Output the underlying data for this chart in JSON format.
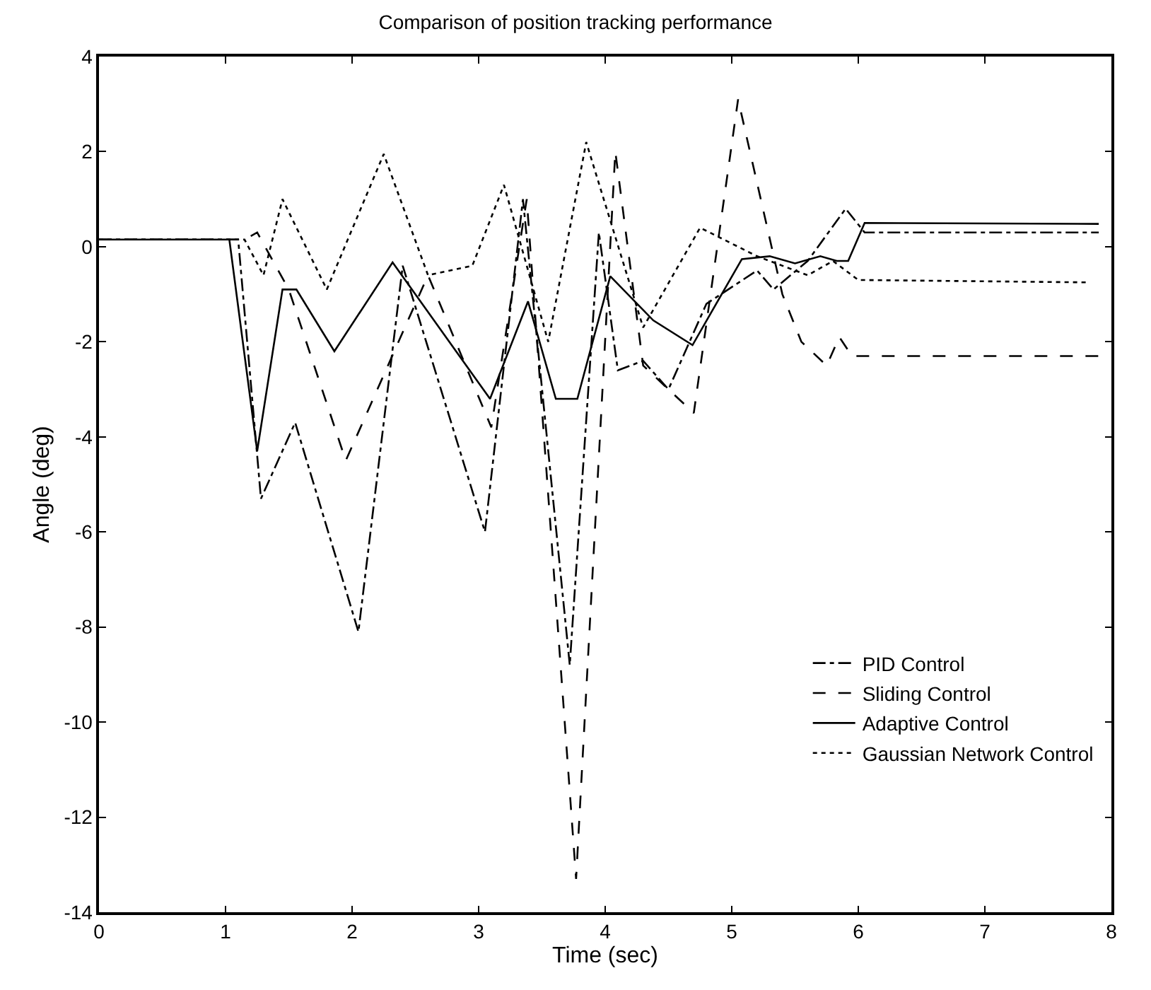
{
  "chart_data": {
    "type": "line",
    "title": "Comparison of position tracking performance",
    "xlabel": "Time (sec)",
    "ylabel": "Angle (deg)",
    "xlim": [
      0,
      8
    ],
    "ylim": [
      -14,
      4
    ],
    "xticks": [
      0,
      1,
      2,
      3,
      4,
      5,
      6,
      7,
      8
    ],
    "yticks": [
      -14,
      -12,
      -10,
      -8,
      -6,
      -4,
      -2,
      0,
      2,
      4
    ],
    "grid": false,
    "legend": "bottom right",
    "marker": "none",
    "series": [
      {
        "name": "PID Control",
        "color": "#000000",
        "line_style": "dashdot",
        "x": [
          0,
          1.1,
          1.28,
          1.55,
          2.05,
          2.4,
          3.05,
          3.35,
          3.72,
          3.95,
          4.1,
          4.3,
          4.5,
          4.8,
          5.2,
          5.33,
          5.6,
          5.9,
          6.05,
          7.9
        ],
        "values": [
          0.15,
          0.15,
          -5.3,
          -3.7,
          -8.1,
          -0.4,
          -6.0,
          1.0,
          -8.8,
          0.3,
          -2.6,
          -2.4,
          -3.0,
          -1.2,
          -0.5,
          -0.9,
          -0.3,
          0.8,
          0.3,
          0.3
        ]
      },
      {
        "name": "Sliding Control",
        "color": "#000000",
        "line_style": "dashed",
        "x": [
          0,
          1.15,
          1.25,
          1.5,
          1.95,
          2.6,
          3.1,
          3.38,
          3.77,
          4.08,
          4.3,
          4.7,
          5.05,
          5.4,
          5.55,
          5.75,
          5.85,
          5.95,
          7.9
        ],
        "values": [
          0.15,
          0.15,
          0.3,
          -0.9,
          -4.5,
          -0.6,
          -3.8,
          1.0,
          -13.3,
          2.0,
          -2.5,
          -3.5,
          3.1,
          -1.0,
          -2.0,
          -2.5,
          -1.9,
          -2.3,
          -2.3
        ]
      },
      {
        "name": "Adaptive Control",
        "color": "#000000",
        "line_style": "solid",
        "x": [
          0,
          1.03,
          1.25,
          1.45,
          1.56,
          1.86,
          2.32,
          3.09,
          3.39,
          3.61,
          3.78,
          4.04,
          4.38,
          4.69,
          5.08,
          5.3,
          5.5,
          5.7,
          5.83,
          5.92,
          6.05,
          7.9
        ],
        "values": [
          0.15,
          0.15,
          -4.3,
          -0.9,
          -0.9,
          -2.2,
          -0.33,
          -3.2,
          -1.15,
          -3.2,
          -3.2,
          -0.62,
          -1.55,
          -2.07,
          -0.26,
          -0.2,
          -0.35,
          -0.2,
          -0.3,
          -0.3,
          0.5,
          0.48
        ]
      },
      {
        "name": "Gaussian Network Control",
        "color": "#000000",
        "line_style": "dotted",
        "x": [
          0,
          1.15,
          1.3,
          1.45,
          1.8,
          2.25,
          2.6,
          2.95,
          3.2,
          3.55,
          3.85,
          4.3,
          4.75,
          5.2,
          5.6,
          5.8,
          6.0,
          7.8
        ],
        "values": [
          0.15,
          0.15,
          -0.6,
          1.0,
          -0.9,
          1.95,
          -0.6,
          -0.4,
          1.3,
          -2.0,
          2.2,
          -1.7,
          0.4,
          -0.2,
          -0.6,
          -0.3,
          -0.7,
          -0.75
        ]
      }
    ]
  }
}
